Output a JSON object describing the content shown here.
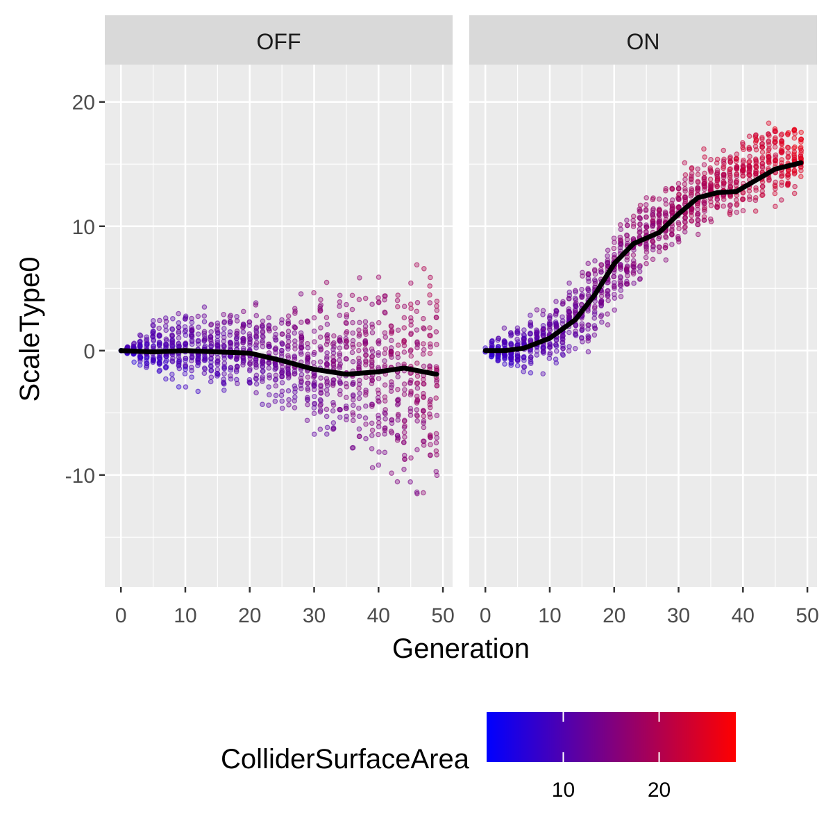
{
  "chart_data": {
    "type": "scatter",
    "xlabel": "Generation",
    "ylabel": "ScaleType0",
    "facets": [
      {
        "label": "OFF",
        "smooth": [
          [
            0,
            0
          ],
          [
            5,
            -0.1
          ],
          [
            10,
            0
          ],
          [
            15,
            -0.1
          ],
          [
            20,
            -0.2
          ],
          [
            25,
            -0.8
          ],
          [
            30,
            -1.5
          ],
          [
            35,
            -1.9
          ],
          [
            40,
            -1.7
          ],
          [
            44,
            -1.4
          ],
          [
            49,
            -1.9
          ]
        ],
        "point_band": [
          {
            "x": 0,
            "lo": 0,
            "hi": 0
          },
          {
            "x": 5,
            "lo": -3,
            "hi": 3
          },
          {
            "x": 10,
            "lo": -3.5,
            "hi": 4
          },
          {
            "x": 20,
            "lo": -5,
            "hi": 4.5
          },
          {
            "x": 30,
            "lo": -8,
            "hi": 6
          },
          {
            "x": 40,
            "lo": -12,
            "hi": 8
          },
          {
            "x": 49,
            "lo": -15,
            "hi": 10
          }
        ]
      },
      {
        "label": "ON",
        "smooth": [
          [
            0,
            0
          ],
          [
            3,
            0
          ],
          [
            6,
            0.2
          ],
          [
            10,
            1
          ],
          [
            14,
            2.5
          ],
          [
            17,
            4.5
          ],
          [
            20,
            7
          ],
          [
            23,
            8.6
          ],
          [
            27,
            9.5
          ],
          [
            30,
            11
          ],
          [
            33,
            12.3
          ],
          [
            36,
            12.7
          ],
          [
            39,
            12.8
          ],
          [
            42,
            13.7
          ],
          [
            45,
            14.6
          ],
          [
            49,
            15.1
          ]
        ],
        "point_band": [
          {
            "x": 0,
            "lo": -0.5,
            "hi": 0.5
          },
          {
            "x": 5,
            "lo": -2.5,
            "hi": 3
          },
          {
            "x": 10,
            "lo": -2,
            "hi": 4
          },
          {
            "x": 15,
            "lo": -1.5,
            "hi": 8
          },
          {
            "x": 20,
            "lo": 1.5,
            "hi": 11
          },
          {
            "x": 25,
            "lo": 5,
            "hi": 14
          },
          {
            "x": 30,
            "lo": 7.5,
            "hi": 15.5
          },
          {
            "x": 35,
            "lo": 9,
            "hi": 17
          },
          {
            "x": 40,
            "lo": 10,
            "hi": 18.5
          },
          {
            "x": 45,
            "lo": 11,
            "hi": 20
          },
          {
            "x": 49,
            "lo": 11.5,
            "hi": 19
          }
        ]
      }
    ],
    "xlim": [
      -2.5,
      51.5
    ],
    "ylim": [
      -19,
      23
    ],
    "x_ticks": [
      0,
      10,
      20,
      30,
      40,
      50
    ],
    "y_ticks": [
      -10,
      0,
      10,
      20
    ],
    "x_tick_labels": [
      "0",
      "10",
      "20",
      "30",
      "40",
      "50"
    ],
    "y_tick_labels": [
      "-10",
      "0",
      "10",
      "20"
    ],
    "grid": true,
    "legend": {
      "title": "ColliderSurfaceArea",
      "position": "bottom",
      "ticks": [
        10,
        20
      ],
      "tick_labels": [
        "10",
        "20"
      ],
      "range": [
        2,
        28
      ],
      "low_color": "#0000FF",
      "high_color": "#FF0000"
    },
    "smooth_color": "#000000",
    "panel_bg": "#EBEBEB",
    "strip_bg": "#D9D9D9"
  }
}
